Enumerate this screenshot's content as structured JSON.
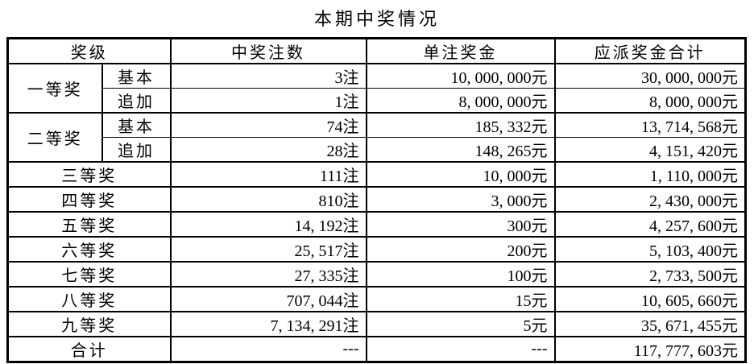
{
  "title": "本期中奖情况",
  "colors": {
    "text": "#000000",
    "background": "#ffffff",
    "border": "#000000"
  },
  "table": {
    "headers": [
      "奖级",
      "中奖注数",
      "单注奖金",
      "应派奖金合计"
    ],
    "rows": [
      {
        "level": "一等奖",
        "sub": "基本",
        "bets": "3注",
        "prize": "10, 000, 000元",
        "total": "30, 000, 000元"
      },
      {
        "sub": "追加",
        "bets": "1注",
        "prize": "8, 000, 000元",
        "total": "8, 000, 000元"
      },
      {
        "level": "二等奖",
        "sub": "基本",
        "bets": "74注",
        "prize": "185, 332元",
        "total": "13, 714, 568元"
      },
      {
        "sub": "追加",
        "bets": "28注",
        "prize": "148, 265元",
        "total": "4, 151, 420元"
      },
      {
        "level": "三等奖",
        "bets": "111注",
        "prize": "10, 000元",
        "total": "1, 110, 000元"
      },
      {
        "level": "四等奖",
        "bets": "810注",
        "prize": "3, 000元",
        "total": "2, 430, 000元"
      },
      {
        "level": "五等奖",
        "bets": "14, 192注",
        "prize": "300元",
        "total": "4, 257, 600元"
      },
      {
        "level": "六等奖",
        "bets": "25, 517注",
        "prize": "200元",
        "total": "5, 103, 400元"
      },
      {
        "level": "七等奖",
        "bets": "27, 335注",
        "prize": "100元",
        "total": "2, 733, 500元"
      },
      {
        "level": "八等奖",
        "bets": "707, 044注",
        "prize": "15元",
        "total": "10, 605, 660元"
      },
      {
        "level": "九等奖",
        "bets": "7, 134, 291注",
        "prize": "5元",
        "total": "35, 671, 455元"
      }
    ],
    "footer": {
      "level": "合计",
      "bets": "---",
      "prize": "---",
      "total": "117, 777, 603元"
    }
  }
}
